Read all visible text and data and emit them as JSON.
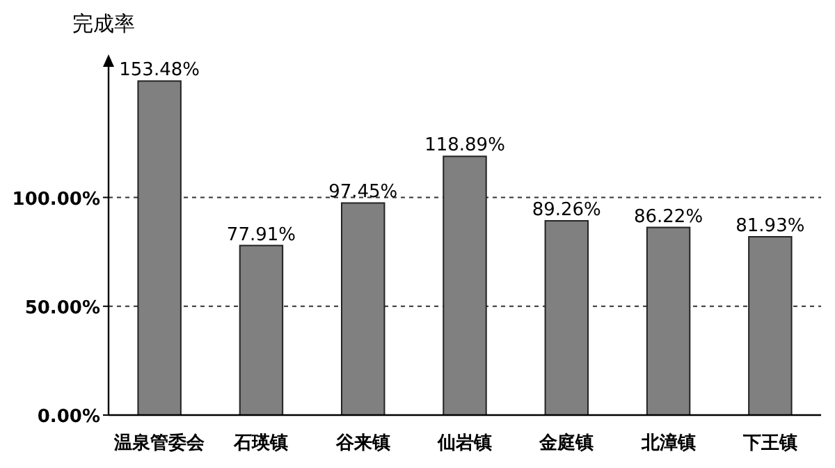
{
  "chart_data": {
    "type": "bar",
    "ylabel": "完成率",
    "categories": [
      "温泉管委会",
      "石瑛镇",
      "谷来镇",
      "仙岩镇",
      "金庭镇",
      "北漳镇",
      "下王镇"
    ],
    "values": [
      153.48,
      77.91,
      97.45,
      118.89,
      89.26,
      86.22,
      81.93
    ],
    "value_labels": [
      "153.48%",
      "77.91%",
      "97.45%",
      "118.89%",
      "89.26%",
      "86.22%",
      "81.93%"
    ],
    "color": "#808080",
    "ylim": [
      0,
      160
    ],
    "yticks": [
      {
        "value": 0,
        "label": "0.00%"
      },
      {
        "value": 50,
        "label": "50.00%"
      },
      {
        "value": 100,
        "label": "100.00%"
      }
    ],
    "grid": "y"
  }
}
